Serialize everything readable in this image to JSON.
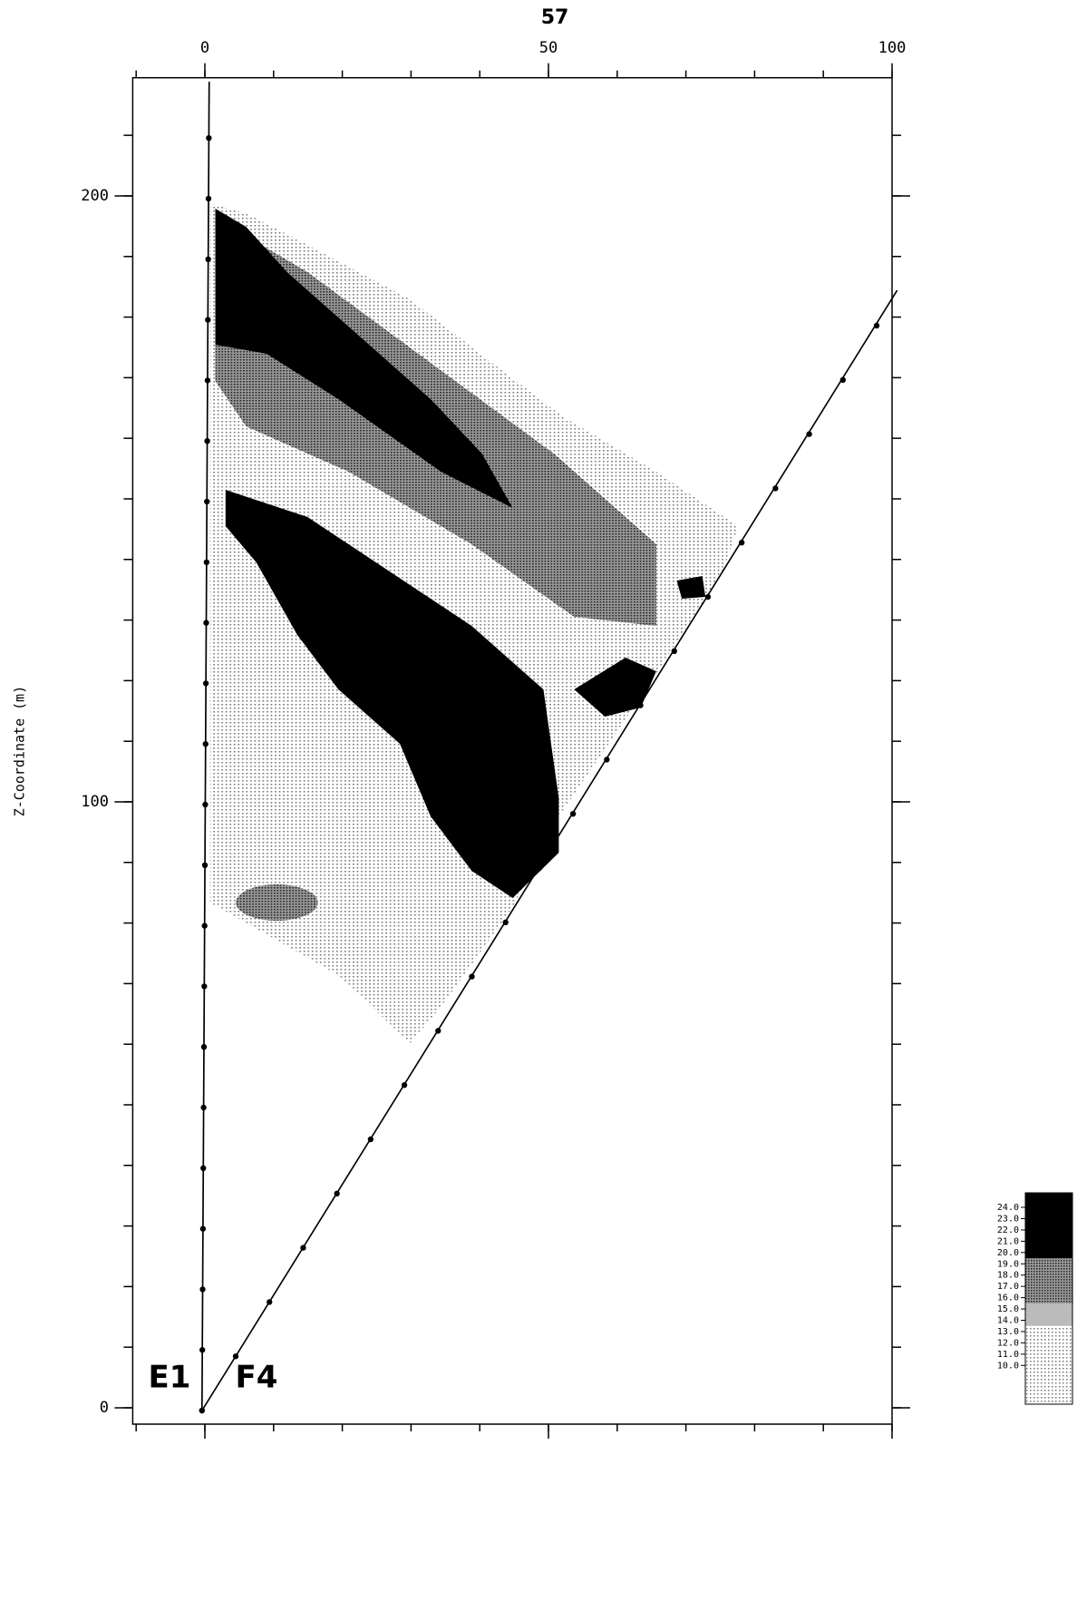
{
  "chart_data": {
    "type": "tomogram",
    "title": "57",
    "y_label": "Z-Coordinate   (m)",
    "xlim": [
      -10.5,
      100
    ],
    "xticks": [
      0,
      50,
      100
    ],
    "ylim": [
      -2.7,
      219.5
    ],
    "yticks": [
      0,
      100,
      200
    ],
    "annotations": [
      "E1",
      "F4"
    ],
    "colorbar": [
      {
        "value": 24,
        "label": "24.0"
      },
      {
        "value": 23,
        "label": "23.0"
      },
      {
        "value": 22,
        "label": "22.0"
      },
      {
        "value": 21,
        "label": "21.0"
      },
      {
        "value": 20,
        "label": "20.0"
      },
      {
        "value": 19,
        "label": "19.0"
      },
      {
        "value": 18,
        "label": "18.0"
      },
      {
        "value": 17,
        "label": "17.0"
      },
      {
        "value": 16,
        "label": "16.0"
      },
      {
        "value": 15,
        "label": "15.0"
      },
      {
        "value": 14,
        "label": "14.0"
      },
      {
        "value": 13,
        "label": "13.0"
      },
      {
        "value": 12,
        "label": "12.0"
      },
      {
        "value": 11,
        "label": "11.0"
      },
      {
        "value": 10,
        "label": "10.0"
      }
    ]
  }
}
